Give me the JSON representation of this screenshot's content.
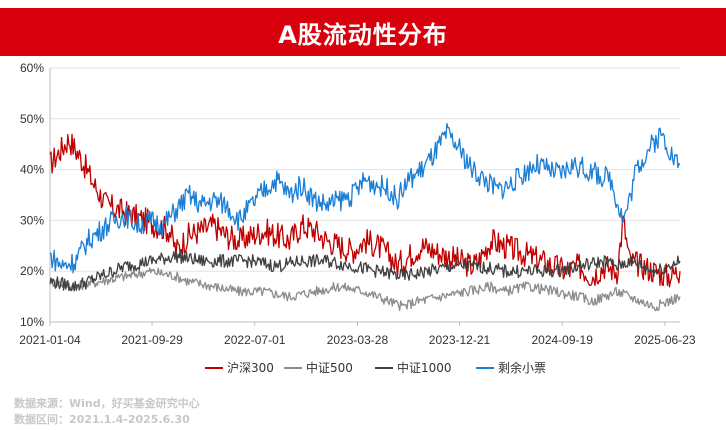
{
  "title": "A股流动性分布",
  "footer": {
    "source": "数据来源：Wind，好买基金研究中心",
    "range": "数据区间：2021.1.4-2025.6.30"
  },
  "chart_data": {
    "type": "line",
    "title": "A股流动性分布",
    "ylim": [
      10,
      60
    ],
    "y_ticks": [
      "10%",
      "20%",
      "30%",
      "40%",
      "50%",
      "60%"
    ],
    "x_ticks": [
      "2021-01-04",
      "2021-09-29",
      "2022-07-01",
      "2023-03-28",
      "2023-12-21",
      "2024-09-19",
      "2025-06-23"
    ],
    "grid": "horizontal",
    "legend": "bottom",
    "series": [
      {
        "name": "沪深300",
        "color": "#c00000",
        "values": [
          [
            0,
            41
          ],
          [
            3,
            46
          ],
          [
            5,
            42
          ],
          [
            7,
            37
          ],
          [
            9,
            33
          ],
          [
            11,
            32
          ],
          [
            13,
            31
          ],
          [
            15,
            30
          ],
          [
            17,
            29
          ],
          [
            19,
            28
          ],
          [
            20,
            24
          ],
          [
            22,
            27
          ],
          [
            24,
            28
          ],
          [
            26,
            29
          ],
          [
            28,
            27
          ],
          [
            30,
            26
          ],
          [
            32,
            27
          ],
          [
            34,
            28
          ],
          [
            36,
            27
          ],
          [
            38,
            26
          ],
          [
            40,
            29
          ],
          [
            42,
            28
          ],
          [
            44,
            26
          ],
          [
            46,
            25
          ],
          [
            48,
            24
          ],
          [
            50,
            26
          ],
          [
            52,
            25
          ],
          [
            54,
            23
          ],
          [
            55,
            21
          ],
          [
            57,
            23
          ],
          [
            59,
            25
          ],
          [
            61,
            24
          ],
          [
            63,
            23
          ],
          [
            65,
            22
          ],
          [
            67,
            21
          ],
          [
            68,
            22
          ],
          [
            70,
            26
          ],
          [
            72,
            25
          ],
          [
            74,
            24
          ],
          [
            76,
            23
          ],
          [
            78,
            22
          ],
          [
            80,
            21
          ],
          [
            82,
            20
          ],
          [
            84,
            21
          ],
          [
            86,
            19
          ],
          [
            88,
            21
          ],
          [
            90,
            20
          ],
          [
            91,
            30
          ],
          [
            92,
            22
          ],
          [
            94,
            21
          ],
          [
            96,
            20
          ],
          [
            98,
            19
          ],
          [
            100,
            20
          ]
        ]
      },
      {
        "name": "中证500",
        "color": "#8c8c8c",
        "values": [
          [
            0,
            18
          ],
          [
            4,
            17
          ],
          [
            8,
            18
          ],
          [
            12,
            19
          ],
          [
            16,
            20
          ],
          [
            20,
            19
          ],
          [
            22,
            18
          ],
          [
            26,
            17
          ],
          [
            30,
            16
          ],
          [
            34,
            16
          ],
          [
            38,
            15
          ],
          [
            42,
            16
          ],
          [
            46,
            17
          ],
          [
            50,
            16
          ],
          [
            52,
            15
          ],
          [
            54,
            14
          ],
          [
            56,
            13
          ],
          [
            58,
            14
          ],
          [
            62,
            15
          ],
          [
            66,
            16
          ],
          [
            70,
            17
          ],
          [
            72,
            16
          ],
          [
            76,
            17
          ],
          [
            80,
            16
          ],
          [
            84,
            15
          ],
          [
            86,
            14
          ],
          [
            88,
            15
          ],
          [
            90,
            16
          ],
          [
            92,
            15
          ],
          [
            94,
            14
          ],
          [
            96,
            13
          ],
          [
            98,
            14
          ],
          [
            100,
            15
          ]
        ]
      },
      {
        "name": "中证1000",
        "color": "#404040",
        "values": [
          [
            0,
            18
          ],
          [
            4,
            17
          ],
          [
            8,
            19
          ],
          [
            12,
            21
          ],
          [
            16,
            22
          ],
          [
            20,
            23
          ],
          [
            24,
            22
          ],
          [
            28,
            22
          ],
          [
            32,
            22
          ],
          [
            36,
            21
          ],
          [
            40,
            22
          ],
          [
            44,
            22
          ],
          [
            48,
            21
          ],
          [
            52,
            20
          ],
          [
            56,
            19
          ],
          [
            60,
            20
          ],
          [
            64,
            21
          ],
          [
            68,
            21
          ],
          [
            72,
            20
          ],
          [
            76,
            20
          ],
          [
            80,
            20
          ],
          [
            84,
            21
          ],
          [
            88,
            22
          ],
          [
            90,
            21
          ],
          [
            92,
            22
          ],
          [
            94,
            21
          ],
          [
            96,
            20
          ],
          [
            98,
            21
          ],
          [
            100,
            22
          ]
        ]
      },
      {
        "name": "剩余小票",
        "color": "#1a7fd6",
        "values": [
          [
            0,
            23
          ],
          [
            2,
            21
          ],
          [
            4,
            22
          ],
          [
            6,
            26
          ],
          [
            8,
            28
          ],
          [
            10,
            30
          ],
          [
            12,
            31
          ],
          [
            14,
            29
          ],
          [
            16,
            30
          ],
          [
            18,
            29
          ],
          [
            20,
            32
          ],
          [
            22,
            35
          ],
          [
            24,
            33
          ],
          [
            26,
            34
          ],
          [
            28,
            33
          ],
          [
            30,
            30
          ],
          [
            32,
            33
          ],
          [
            34,
            36
          ],
          [
            36,
            38
          ],
          [
            38,
            35
          ],
          [
            40,
            37
          ],
          [
            42,
            34
          ],
          [
            44,
            33
          ],
          [
            46,
            34
          ],
          [
            48,
            35
          ],
          [
            50,
            38
          ],
          [
            52,
            37
          ],
          [
            54,
            36
          ],
          [
            55,
            34
          ],
          [
            57,
            38
          ],
          [
            59,
            40
          ],
          [
            61,
            43
          ],
          [
            63,
            47
          ],
          [
            65,
            44
          ],
          [
            67,
            40
          ],
          [
            69,
            38
          ],
          [
            71,
            36
          ],
          [
            73,
            37
          ],
          [
            75,
            39
          ],
          [
            77,
            41
          ],
          [
            79,
            40
          ],
          [
            81,
            39
          ],
          [
            83,
            41
          ],
          [
            85,
            40
          ],
          [
            87,
            39
          ],
          [
            89,
            38
          ],
          [
            90,
            34
          ],
          [
            91,
            30
          ],
          [
            92,
            34
          ],
          [
            93,
            40
          ],
          [
            95,
            44
          ],
          [
            97,
            47
          ],
          [
            98,
            45
          ],
          [
            99,
            42
          ],
          [
            100,
            41
          ]
        ]
      }
    ]
  }
}
